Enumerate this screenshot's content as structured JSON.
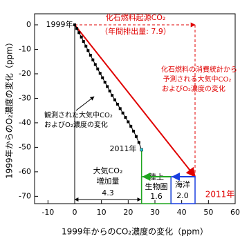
{
  "chart_data": {
    "type": "line",
    "x_label": "1999年からのCO₂濃度の変化（ppm）",
    "y_label": "1999年からのO₂濃度の変化（ppm）",
    "xlim": [
      -15,
      60
    ],
    "ylim": [
      -73,
      4.5
    ],
    "xticks": [
      -10,
      0,
      10,
      20,
      30,
      40,
      50,
      60
    ],
    "yticks": [
      0,
      -10,
      -20,
      -30,
      -40,
      -50,
      -60,
      -70
    ],
    "series": [
      {
        "color": "#000000",
        "x": [
          0,
          0.8,
          1.6,
          2.5,
          3.3,
          4.2,
          5.0,
          5.9,
          6.8,
          7.7,
          8.6,
          9.5,
          10.4,
          11.3,
          12.2,
          13.1,
          14.0,
          15.0,
          16.0,
          17.0,
          18,
          19,
          20,
          21,
          22,
          23,
          24,
          25
        ],
        "values": [
          0,
          -1.5,
          -3.2,
          -5,
          -6.8,
          -8.7,
          -10.5,
          -12.4,
          -14.3,
          -16.2,
          -18,
          -19.8,
          -21.6,
          -23.4,
          -25.2,
          -27,
          -28.8,
          -30.6,
          -32.4,
          -34.2,
          -36,
          -37.8,
          -39.6,
          -41.4,
          -43.4,
          -45.6,
          -48,
          -51
        ]
      }
    ],
    "fossil_fuel_end": {
      "x": 45,
      "y": -62
    },
    "land_ocean_x": 36,
    "annotations": [
      "1999年",
      "化石燃料起源CO₂",
      "（年間排出量: 7.9）",
      "化石燃料の消費統計から",
      "予測される大気中CO₂",
      "およびO₂濃度の変化",
      "観測された大気中CO₂",
      "およびO₂濃度の変化",
      "2011年",
      "2011年",
      "大気CO₂",
      "増加量",
      "4.3",
      "陸上",
      "生物圏",
      "1.6",
      "海洋",
      "2.0"
    ]
  }
}
